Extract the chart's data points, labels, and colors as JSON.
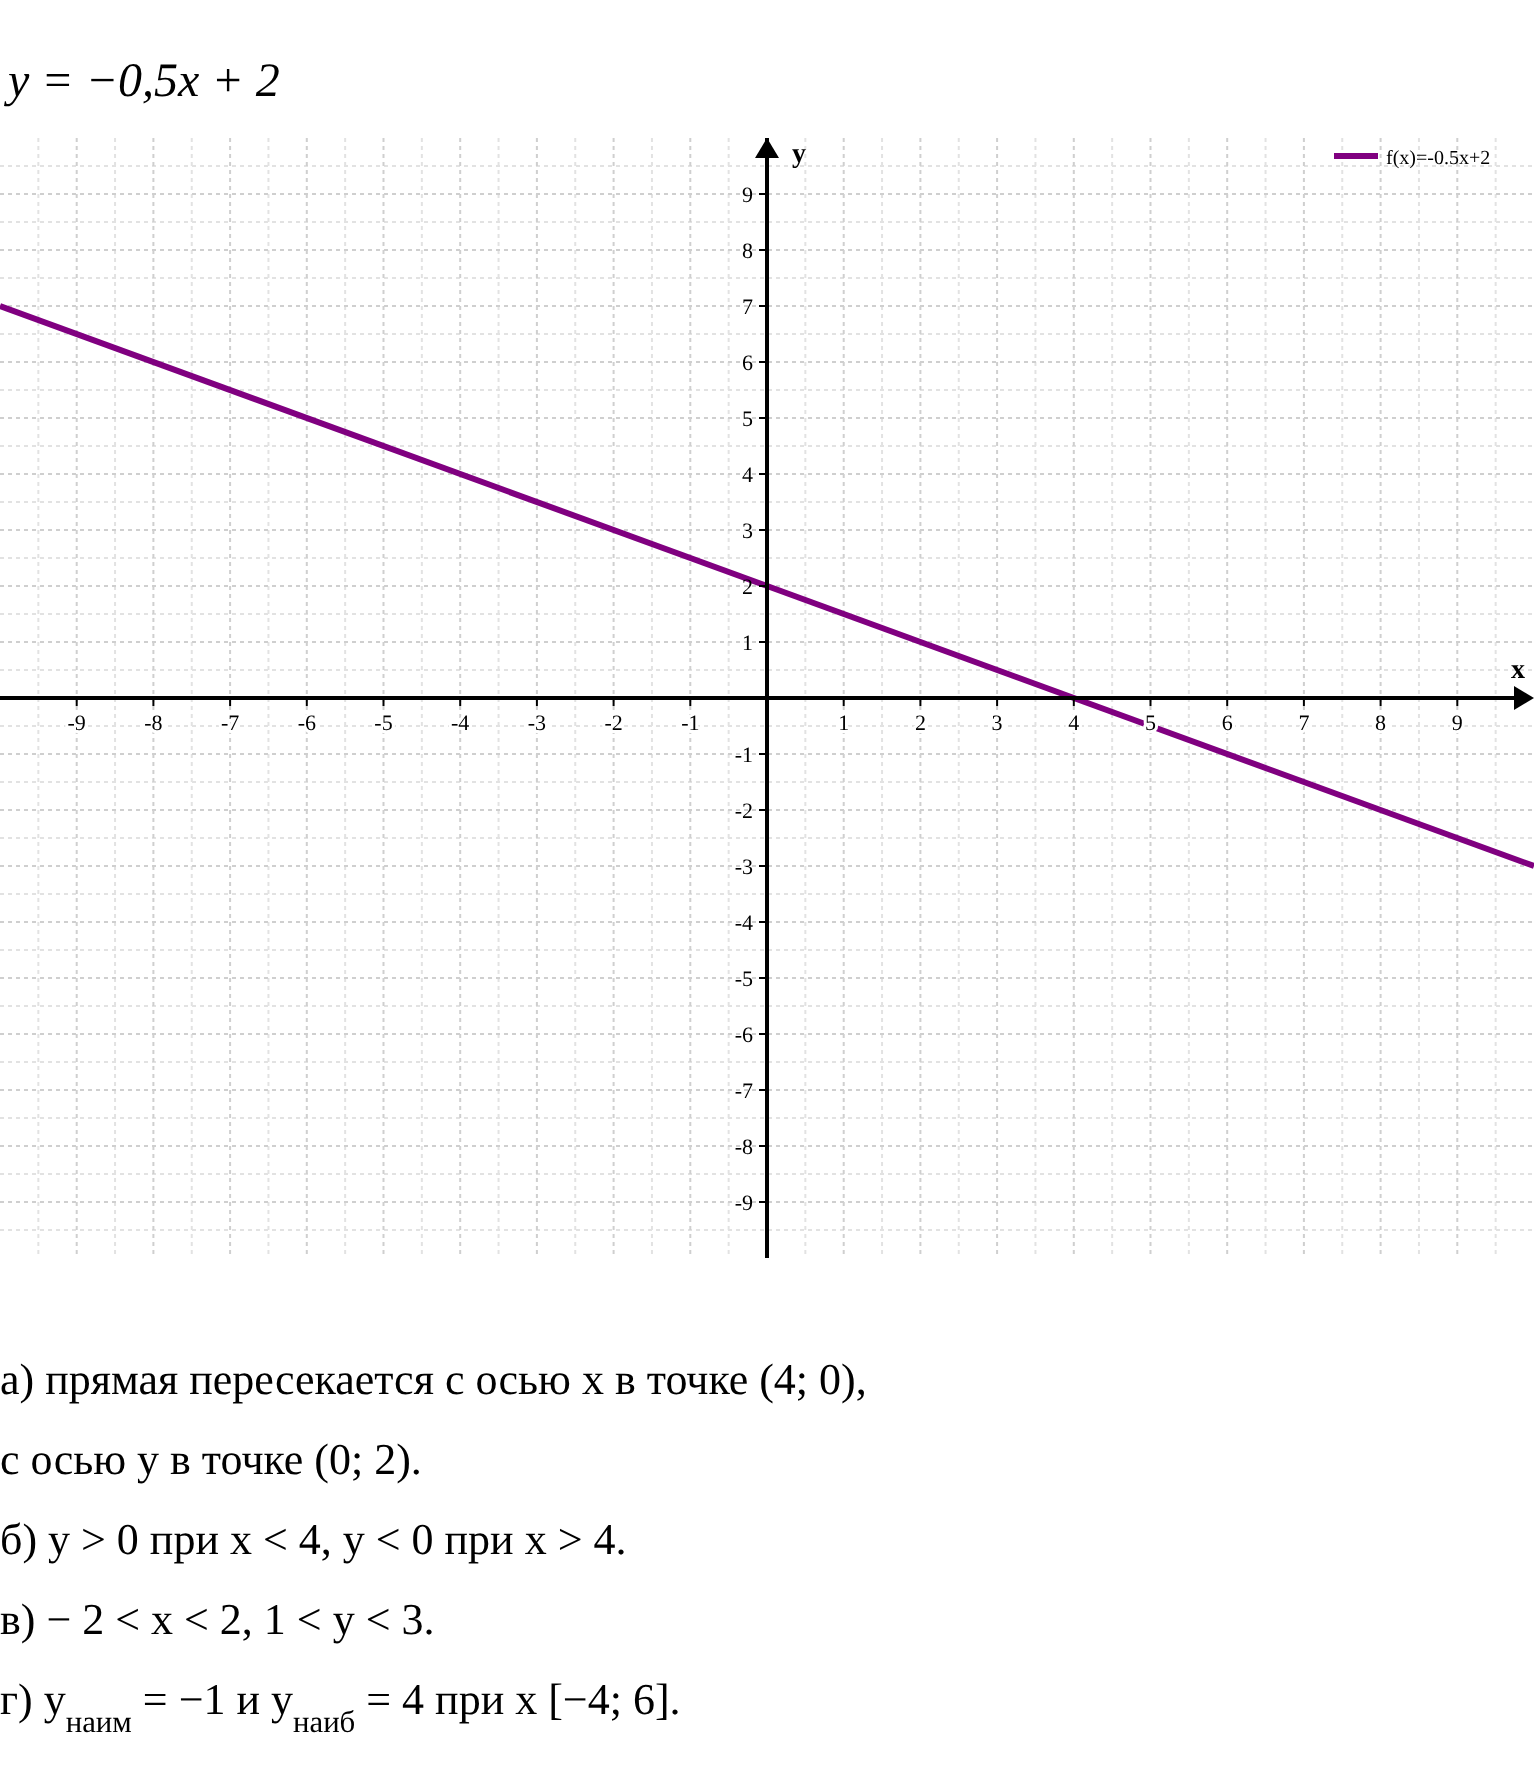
{
  "chart_data": {
    "type": "line",
    "title": "y = −0,5x + 2",
    "xlabel": "x",
    "ylabel": "y",
    "xlim": [
      -10,
      10
    ],
    "ylim": [
      -10,
      10
    ],
    "xticks": [
      -9,
      -8,
      -7,
      -6,
      -5,
      -4,
      -3,
      -2,
      -1,
      {
        "value": 0,
        "label": null
      },
      1,
      2,
      3,
      4,
      5,
      6,
      7,
      8,
      9
    ],
    "yticks": [
      -9,
      -8,
      -7,
      -6,
      -5,
      -4,
      -3,
      -2,
      -1,
      {
        "value": 0,
        "label": null
      },
      1,
      2,
      3,
      4,
      5,
      6,
      7,
      8,
      9
    ],
    "x": [
      -10,
      10
    ],
    "series": [
      {
        "name": "f(x)=-0.5x+2",
        "color": "#800080",
        "values": [
          7,
          -3
        ]
      }
    ],
    "grid": true,
    "legend": "top right",
    "marker": "none",
    "line_style": "solid",
    "annotations": [
      "а) прямая пересекается с осью x  в точке (4; 0),",
      "с осью y в точке (0; 2).",
      "б) y > 0 при x < 4,        y < 0 при x > 4.",
      "в) − 2 < x < 2,        1 < y < 3.",
      "г) y$_{наим}$ = −1 и y$_{наиб}$ = 4  при x [−4; 6]."
    ]
  }
}
